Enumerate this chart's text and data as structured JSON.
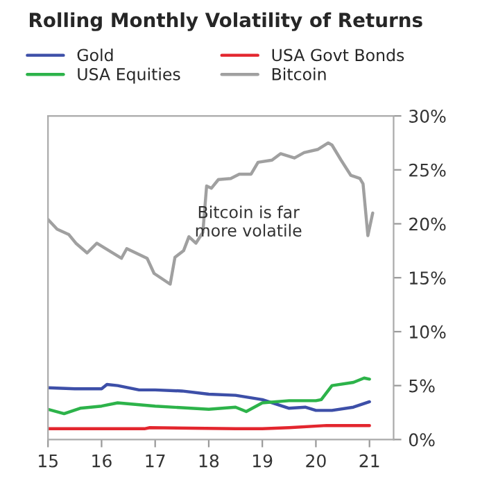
{
  "chart_data": {
    "type": "line",
    "title": "Rolling Monthly Volatility of Returns",
    "xlim": [
      15,
      21.45
    ],
    "xticks": [
      15,
      16,
      17,
      18,
      19,
      20,
      21
    ],
    "ylim": [
      0,
      30
    ],
    "yticks": [
      {
        "value": 0,
        "label": "0%"
      },
      {
        "value": 5,
        "label": "5%"
      },
      {
        "value": 10,
        "label": "10%"
      },
      {
        "value": 15,
        "label": "15%"
      },
      {
        "value": 20,
        "label": "20%"
      },
      {
        "value": 25,
        "label": "25%"
      },
      {
        "value": 30,
        "label": "30%"
      }
    ],
    "grid": false,
    "legend": "top",
    "marker": "none",
    "line_style": "solid",
    "annotations": [
      "Bitcoin is far\nmore volatile"
    ],
    "series": [
      {
        "name": "Gold",
        "color": "#3d4fa8",
        "x": [
          15.0,
          15.5,
          16.0,
          16.1,
          16.3,
          16.7,
          17.0,
          17.5,
          18.0,
          18.5,
          19.0,
          19.5,
          19.8,
          20.0,
          20.3,
          20.7,
          21.0
        ],
        "values": [
          4.8,
          4.7,
          4.7,
          5.1,
          5.0,
          4.6,
          4.6,
          4.5,
          4.2,
          4.1,
          3.7,
          2.9,
          3.0,
          2.7,
          2.7,
          3.0,
          3.5
        ]
      },
      {
        "name": "USA Govt Bonds",
        "color": "#e3262e",
        "x": [
          15.0,
          16.8,
          16.9,
          18.5,
          19.0,
          19.5,
          20.2,
          21.0
        ],
        "values": [
          1.0,
          1.0,
          1.1,
          1.0,
          1.0,
          1.1,
          1.3,
          1.3
        ]
      },
      {
        "name": "USA Equities",
        "color": "#2db34a",
        "x": [
          15.0,
          15.3,
          15.6,
          16.0,
          16.3,
          17.0,
          18.0,
          18.5,
          18.7,
          19.0,
          19.5,
          20.0,
          20.1,
          20.3,
          20.7,
          20.9,
          21.0
        ],
        "values": [
          2.8,
          2.4,
          2.9,
          3.1,
          3.4,
          3.1,
          2.8,
          3.0,
          2.6,
          3.4,
          3.6,
          3.6,
          3.7,
          5.0,
          5.3,
          5.7,
          5.6
        ]
      },
      {
        "name": "Bitcoin",
        "color": "#a0a0a0",
        "x": [
          15.0,
          15.17,
          15.39,
          15.52,
          15.73,
          15.91,
          16.37,
          16.47,
          16.85,
          16.98,
          17.28,
          17.37,
          17.53,
          17.63,
          17.76,
          17.89,
          17.96,
          18.05,
          18.18,
          18.41,
          18.57,
          18.79,
          18.92,
          19.18,
          19.34,
          19.6,
          19.78,
          20.04,
          20.23,
          20.3,
          20.47,
          20.65,
          20.82,
          20.88,
          20.97,
          21.06
        ],
        "values": [
          20.4,
          19.5,
          19.0,
          18.2,
          17.3,
          18.2,
          16.8,
          17.7,
          16.8,
          15.4,
          14.4,
          16.9,
          17.5,
          18.8,
          18.2,
          19.2,
          23.5,
          23.3,
          24.1,
          24.2,
          24.6,
          24.6,
          25.7,
          25.9,
          26.5,
          26.1,
          26.6,
          26.9,
          27.5,
          27.3,
          25.9,
          24.5,
          24.2,
          23.7,
          18.9,
          21.0
        ]
      }
    ]
  }
}
